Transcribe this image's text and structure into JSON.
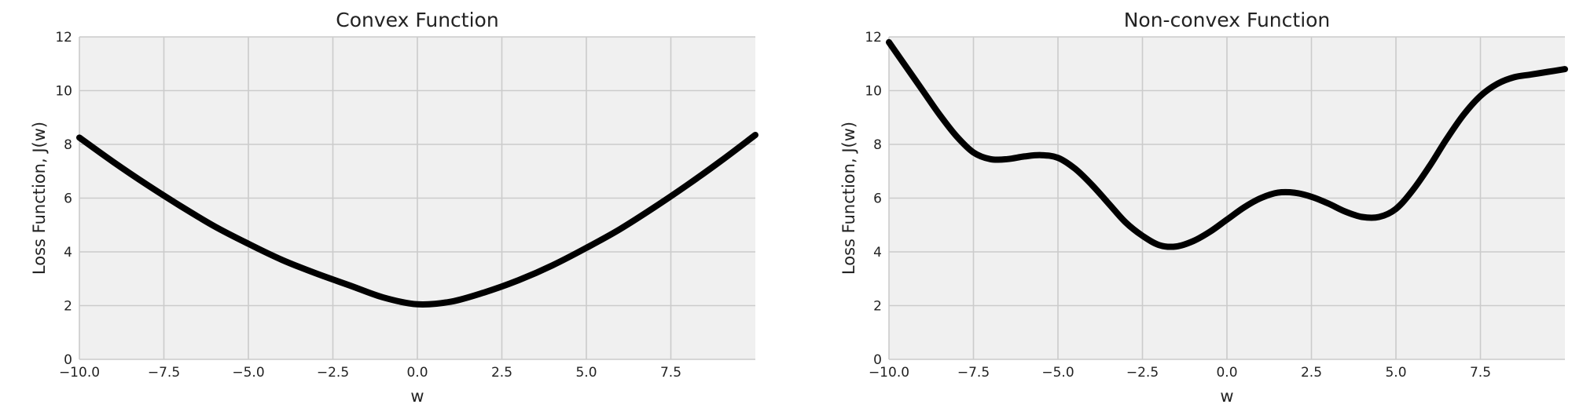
{
  "chart_data": [
    {
      "type": "line",
      "title": "Convex Function",
      "xlabel": "w",
      "ylabel": "Loss Function, J(w)",
      "xlim": [
        -10,
        10
      ],
      "ylim": [
        0,
        12
      ],
      "xticks": [
        -10.0,
        -7.5,
        -5.0,
        -2.5,
        0.0,
        2.5,
        5.0,
        7.5
      ],
      "xtick_labels": [
        "−10.0",
        "−7.5",
        "−5.0",
        "−2.5",
        "0.0",
        "2.5",
        "5.0",
        "7.5"
      ],
      "yticks": [
        0,
        2,
        4,
        6,
        8,
        10,
        12
      ],
      "ytick_labels": [
        "0",
        "2",
        "4",
        "6",
        "8",
        "10",
        "12"
      ],
      "grid": true,
      "series": [
        {
          "color": "#000000",
          "x": [
            -10,
            -9,
            -8,
            -7,
            -6,
            -5,
            -4,
            -3,
            -2,
            -1,
            0,
            1,
            2,
            3,
            4,
            5,
            6,
            7,
            8,
            9,
            10
          ],
          "y": [
            8.25,
            7.35,
            6.5,
            5.7,
            4.95,
            4.3,
            3.7,
            3.2,
            2.75,
            2.3,
            2.05,
            2.15,
            2.5,
            2.95,
            3.5,
            4.15,
            4.85,
            5.65,
            6.5,
            7.4,
            8.35
          ]
        }
      ]
    },
    {
      "type": "line",
      "title": "Non-convex Function",
      "xlabel": "w",
      "ylabel": "Loss Function, J(w)",
      "xlim": [
        -10,
        10
      ],
      "ylim": [
        0,
        12
      ],
      "xticks": [
        -10.0,
        -7.5,
        -5.0,
        -2.5,
        0.0,
        2.5,
        5.0,
        7.5
      ],
      "xtick_labels": [
        "−10.0",
        "−7.5",
        "−5.0",
        "−2.5",
        "0.0",
        "2.5",
        "5.0",
        "7.5"
      ],
      "yticks": [
        0,
        2,
        4,
        6,
        8,
        10,
        12
      ],
      "ytick_labels": [
        "0",
        "2",
        "4",
        "6",
        "8",
        "10",
        "12"
      ],
      "grid": true,
      "series": [
        {
          "color": "#000000",
          "x": [
            -10,
            -9.5,
            -9,
            -8.5,
            -8,
            -7.5,
            -7,
            -6.5,
            -6,
            -5.5,
            -5,
            -4.5,
            -4,
            -3.5,
            -3,
            -2.5,
            -2,
            -1.5,
            -1,
            -0.5,
            0,
            0.5,
            1,
            1.5,
            2,
            2.5,
            3,
            3.5,
            4,
            4.5,
            5,
            5.5,
            6,
            6.5,
            7,
            7.5,
            8,
            8.5,
            9,
            9.5,
            10
          ],
          "y": [
            11.8,
            10.9,
            10.0,
            9.1,
            8.3,
            7.7,
            7.45,
            7.45,
            7.55,
            7.6,
            7.5,
            7.1,
            6.5,
            5.8,
            5.1,
            4.6,
            4.25,
            4.2,
            4.4,
            4.75,
            5.2,
            5.65,
            6.0,
            6.2,
            6.2,
            6.05,
            5.8,
            5.5,
            5.3,
            5.3,
            5.6,
            6.3,
            7.2,
            8.2,
            9.1,
            9.8,
            10.25,
            10.5,
            10.6,
            10.7,
            10.8
          ]
        }
      ]
    }
  ]
}
